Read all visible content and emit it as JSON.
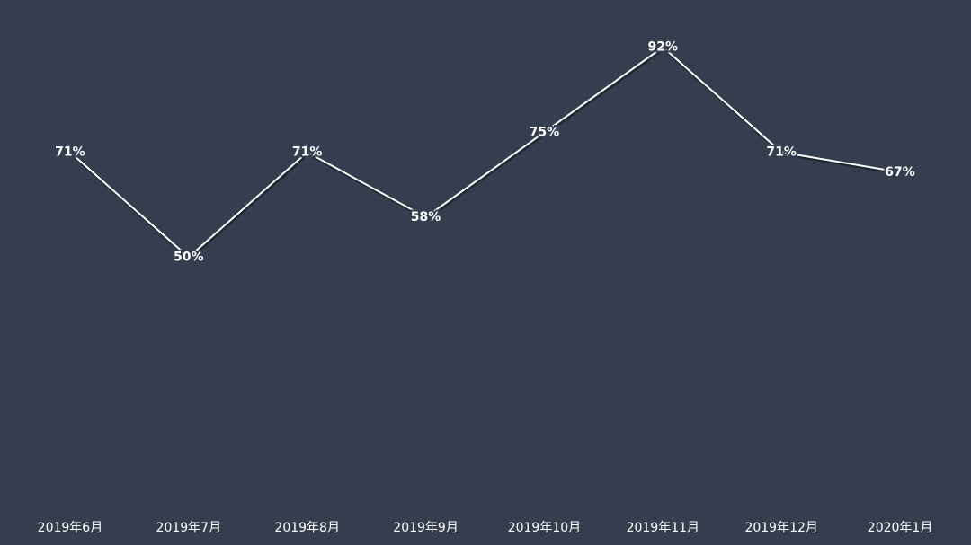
{
  "chart_data": {
    "type": "line",
    "categories": [
      "2019年6月",
      "2019年7月",
      "2019年8月",
      "2019年9月",
      "2019年10月",
      "2019年11月",
      "2019年12月",
      "2020年1月"
    ],
    "values": [
      71,
      50,
      71,
      58,
      75,
      92,
      71,
      67
    ],
    "value_labels": [
      "71%",
      "50%",
      "71%",
      "58%",
      "75%",
      "92%",
      "71%",
      "67%"
    ],
    "color": "#ffffff",
    "ylim": [
      0,
      100
    ]
  }
}
